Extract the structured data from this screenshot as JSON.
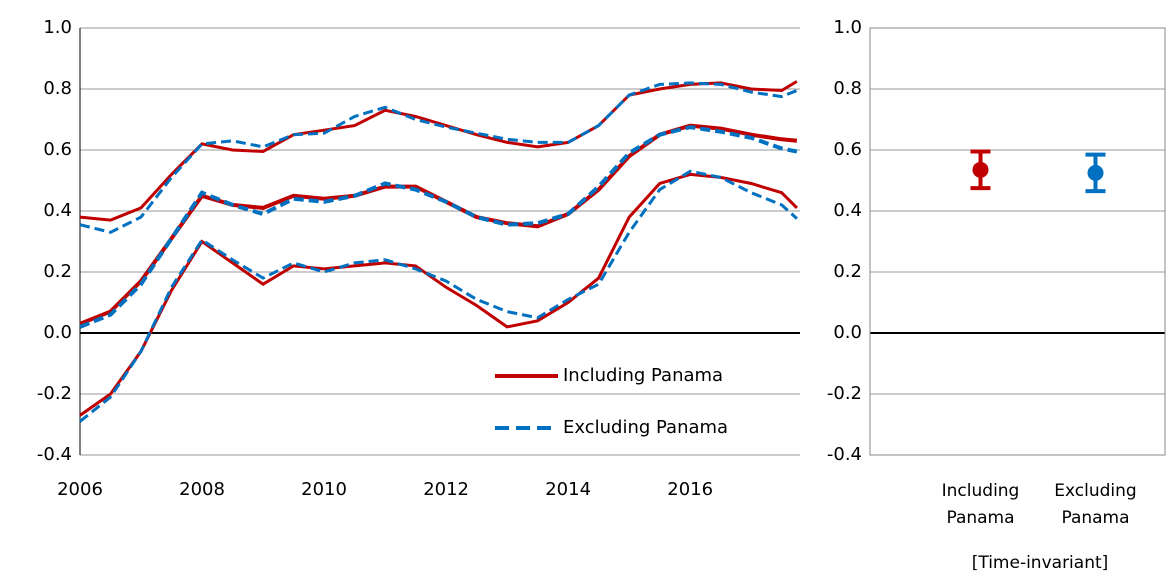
{
  "chart_data": [
    {
      "type": "line",
      "x": [
        2006,
        2006.5,
        2007,
        2007.5,
        2008,
        2008.5,
        2009,
        2009.5,
        2010,
        2010.5,
        2011,
        2011.5,
        2012,
        2012.5,
        2013,
        2013.5,
        2014,
        2014.5,
        2015,
        2015.5,
        2016,
        2016.5,
        2017,
        2017.5,
        2017.75
      ],
      "series": [
        {
          "name": "Including Panama",
          "color": "#c00000",
          "dash": false,
          "values": [
            0.03,
            0.07,
            0.17,
            0.31,
            0.45,
            0.42,
            0.41,
            0.45,
            0.44,
            0.45,
            0.48,
            0.48,
            0.43,
            0.38,
            0.36,
            0.35,
            0.39,
            0.47,
            0.58,
            0.65,
            0.68,
            0.67,
            0.65,
            0.635,
            0.63
          ],
          "upper": [
            0.38,
            0.37,
            0.41,
            0.52,
            0.62,
            0.6,
            0.595,
            0.65,
            0.665,
            0.68,
            0.73,
            0.71,
            0.68,
            0.65,
            0.625,
            0.61,
            0.625,
            0.68,
            0.78,
            0.8,
            0.815,
            0.82,
            0.8,
            0.795,
            0.825
          ],
          "lower": [
            -0.27,
            -0.2,
            -0.06,
            0.14,
            0.3,
            0.23,
            0.16,
            0.22,
            0.21,
            0.22,
            0.23,
            0.22,
            0.15,
            0.09,
            0.02,
            0.04,
            0.1,
            0.18,
            0.38,
            0.49,
            0.52,
            0.51,
            0.49,
            0.46,
            0.41
          ]
        },
        {
          "name": "Excluding Panama",
          "color": "#0070c0",
          "dash": true,
          "values": [
            0.02,
            0.06,
            0.16,
            0.31,
            0.46,
            0.42,
            0.39,
            0.44,
            0.43,
            0.45,
            0.49,
            0.47,
            0.43,
            0.38,
            0.355,
            0.36,
            0.39,
            0.48,
            0.59,
            0.65,
            0.675,
            0.66,
            0.64,
            0.605,
            0.595
          ],
          "upper": [
            0.355,
            0.33,
            0.38,
            0.51,
            0.62,
            0.63,
            0.61,
            0.65,
            0.655,
            0.71,
            0.74,
            0.7,
            0.675,
            0.655,
            0.635,
            0.625,
            0.625,
            0.68,
            0.78,
            0.815,
            0.82,
            0.815,
            0.79,
            0.775,
            0.795
          ],
          "lower": [
            -0.29,
            -0.21,
            -0.06,
            0.15,
            0.305,
            0.24,
            0.18,
            0.23,
            0.2,
            0.23,
            0.24,
            0.21,
            0.17,
            0.11,
            0.07,
            0.05,
            0.11,
            0.16,
            0.33,
            0.47,
            0.53,
            0.51,
            0.46,
            0.42,
            0.375
          ]
        }
      ],
      "xlim": [
        2006,
        2017.8
      ],
      "xticks": [
        2006,
        2008,
        2010,
        2012,
        2014,
        2016
      ],
      "ylim": [
        -0.4,
        1
      ],
      "yticks": [
        {
          "value": 1,
          "label": "1.0"
        },
        0.8,
        0.6,
        0.4,
        0.2,
        {
          "value": 0,
          "label": "0.0"
        },
        -0.2,
        -0.4
      ],
      "grid": true,
      "legend": "lower right"
    },
    {
      "type": "errorbar",
      "categories": [
        "Including Panama",
        "Excluding Panama"
      ],
      "values": [
        0.535,
        0.525
      ],
      "errors": [
        0.06,
        0.06
      ],
      "colors": [
        "#c00000",
        "#0070c0"
      ],
      "ylim": [
        -0.4,
        1
      ],
      "yticks": [
        {
          "value": 1,
          "label": "1.0"
        },
        0.8,
        0.6,
        0.4,
        0.2,
        {
          "value": 0,
          "label": "0.0"
        },
        -0.2,
        -0.4
      ],
      "grid": true,
      "annotation": "[Time-invariant]"
    }
  ]
}
